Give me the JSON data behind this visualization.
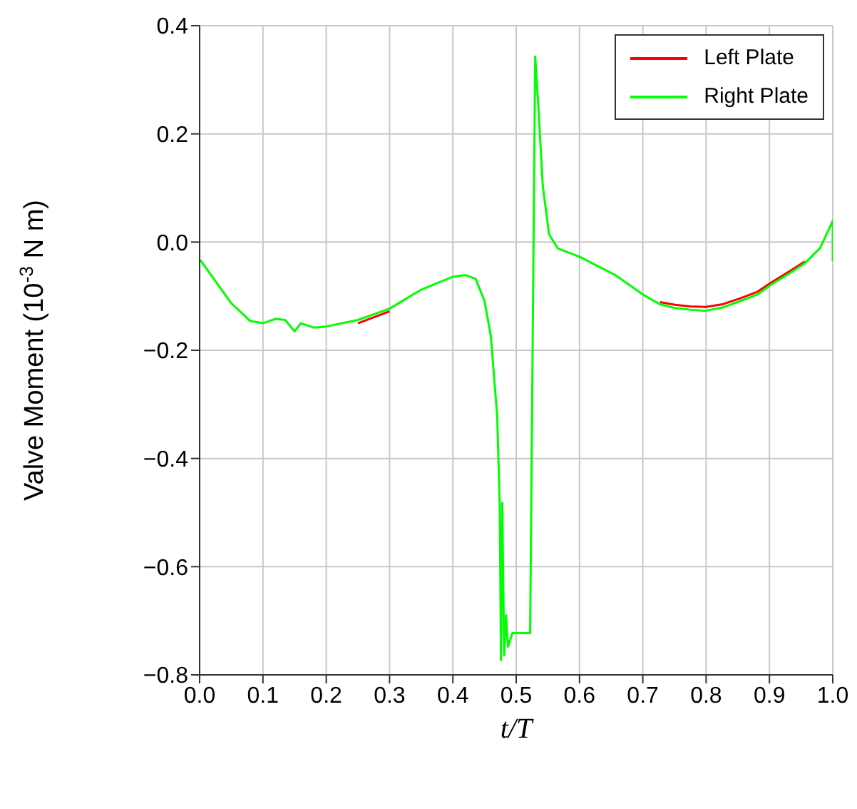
{
  "chart_data": {
    "type": "line",
    "xlabel": "t/T",
    "ylabel": "Valve Moment (10$^{-3}$ N m)",
    "x": [
      0.001,
      0.05,
      0.08,
      0.1,
      0.12,
      0.135,
      0.15,
      0.16,
      0.18,
      0.2,
      0.25,
      0.3,
      0.35,
      0.4,
      0.42,
      0.436,
      0.45,
      0.46,
      0.47,
      0.474,
      0.476,
      0.478,
      0.481,
      0.484,
      0.487,
      0.494,
      0.522,
      0.53,
      0.535,
      0.542,
      0.552,
      0.566,
      0.6,
      0.655,
      0.703,
      0.727,
      0.751,
      0.775,
      0.799,
      0.826,
      0.854,
      0.881,
      0.901,
      0.929,
      0.956,
      0.98,
      1.0,
      1.0
    ],
    "series": [
      {
        "name": "Left Plate",
        "color": "#ff0000",
        "values": [
          null,
          null,
          null,
          null,
          null,
          null,
          null,
          null,
          null,
          null,
          -0.15,
          -0.128,
          null,
          null,
          null,
          null,
          null,
          null,
          null,
          null,
          null,
          null,
          null,
          null,
          null,
          null,
          null,
          null,
          null,
          null,
          null,
          null,
          null,
          null,
          null,
          -0.111,
          -0.116,
          -0.119,
          -0.12,
          -0.115,
          -0.104,
          -0.092,
          -0.076,
          -0.056,
          -0.036,
          null,
          null,
          null
        ]
      },
      {
        "name": "Right Plate",
        "color": "#00ff00",
        "values": [
          -0.033,
          -0.113,
          -0.146,
          -0.15,
          -0.142,
          -0.144,
          -0.165,
          -0.15,
          -0.158,
          -0.156,
          -0.144,
          -0.123,
          -0.088,
          -0.064,
          -0.061,
          -0.068,
          -0.109,
          -0.174,
          -0.322,
          -0.486,
          -0.773,
          -0.482,
          -0.764,
          -0.69,
          -0.748,
          -0.723,
          -0.723,
          0.343,
          0.251,
          0.104,
          0.014,
          -0.012,
          -0.027,
          -0.06,
          -0.099,
          -0.115,
          -0.122,
          -0.125,
          -0.127,
          -0.121,
          -0.109,
          -0.097,
          -0.08,
          -0.06,
          -0.039,
          -0.011,
          0.039,
          -0.035
        ]
      }
    ],
    "xlim": [
      0,
      1
    ],
    "xticks": [
      {
        "value": 0,
        "label": "0.0"
      },
      0.1,
      0.2,
      0.3,
      0.4,
      0.5,
      0.6,
      0.7,
      0.8,
      0.9,
      {
        "value": 1,
        "label": "1.0"
      }
    ],
    "ylim": [
      -0.8,
      0.4
    ],
    "yticks": [
      {
        "value": -0.8,
        "label": "−0.8"
      },
      {
        "value": -0.6,
        "label": "−0.6"
      },
      {
        "value": -0.4,
        "label": "−0.4"
      },
      {
        "value": -0.2,
        "label": "−0.2"
      },
      {
        "value": 0,
        "label": "0.0"
      },
      0.2,
      0.4
    ],
    "grid": true,
    "legend": "top right",
    "marker": "none",
    "line_style": "solid"
  }
}
